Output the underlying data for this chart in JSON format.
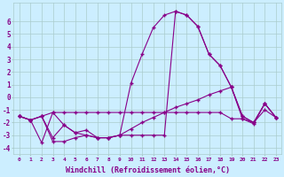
{
  "xlabel": "Windchill (Refroidissement éolien,°C)",
  "bg_color": "#cceeff",
  "grid_color": "#aacccc",
  "line_color": "#880088",
  "x": [
    0,
    1,
    2,
    3,
    4,
    5,
    6,
    7,
    8,
    9,
    10,
    11,
    12,
    13,
    14,
    15,
    16,
    17,
    18,
    19,
    20,
    21,
    22,
    23
  ],
  "series1": [
    -1.5,
    -1.8,
    -1.5,
    -1.2,
    -1.2,
    -1.2,
    -1.2,
    -1.2,
    -1.2,
    -1.2,
    -1.2,
    -1.2,
    -1.2,
    -1.2,
    -1.2,
    -1.2,
    -1.2,
    -1.2,
    -1.2,
    -1.7,
    -1.7,
    -2.1,
    -0.5,
    -1.6
  ],
  "series2": [
    -1.5,
    -1.8,
    -3.6,
    -1.2,
    -2.2,
    -2.8,
    -3.0,
    -3.2,
    -3.2,
    -3.0,
    1.1,
    3.4,
    5.5,
    6.5,
    6.8,
    6.5,
    5.6,
    3.4,
    2.5,
    0.8,
    -1.5,
    -2.0,
    -0.5,
    -1.6
  ],
  "series3": [
    -1.5,
    -1.8,
    -1.5,
    -3.2,
    -2.2,
    -2.8,
    -2.6,
    -3.2,
    -3.2,
    -3.0,
    -3.0,
    -3.0,
    -3.0,
    -3.0,
    6.8,
    6.5,
    5.6,
    3.4,
    2.5,
    0.8,
    -1.5,
    -2.0,
    -0.5,
    -1.6
  ],
  "series4": [
    -1.5,
    -1.8,
    -1.5,
    -3.5,
    -3.5,
    -3.2,
    -3.0,
    -3.2,
    -3.2,
    -3.0,
    -2.5,
    -2.0,
    -1.6,
    -1.2,
    -0.8,
    -0.5,
    -0.2,
    0.2,
    0.5,
    0.8,
    -1.7,
    -2.0,
    -1.0,
    -1.6
  ],
  "ylim": [
    -4.5,
    7.5
  ],
  "yticks": [
    -4,
    -3,
    -2,
    -1,
    0,
    1,
    2,
    3,
    4,
    5,
    6
  ],
  "markersize": 3,
  "linewidth": 0.8
}
